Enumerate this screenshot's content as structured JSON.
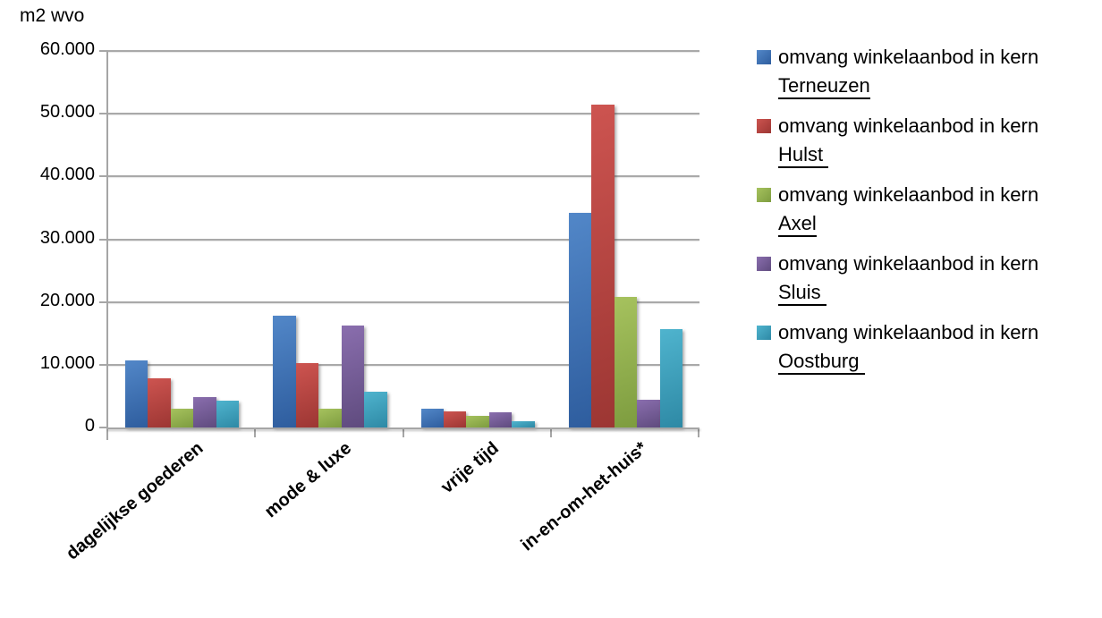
{
  "chart_title": "m2 wvo",
  "chart_data": {
    "type": "bar",
    "title": "m2 wvo",
    "categories": [
      "dagelijkse goederen",
      "mode & luxe",
      "vrije tijd",
      "in-en-om-het-huis*"
    ],
    "series": [
      {
        "name": "omvang winkelaanbod in kern Terneuzen",
        "label": "omvang winkelaanbod in kern",
        "city": "Terneuzen",
        "color": "#4F81BD",
        "color_light": "#5287c8",
        "color_dark": "#2e5d9e",
        "values": [
          10700,
          17800,
          3000,
          34200
        ]
      },
      {
        "name": "omvang winkelaanbod in kern Hulst",
        "label": "omvang winkelaanbod in kern",
        "city": "Hulst ",
        "color": "#C0504D",
        "color_light": "#cd5450",
        "color_dark": "#9c3633",
        "values": [
          7900,
          10300,
          2500,
          51400
        ]
      },
      {
        "name": "omvang winkelaanbod in kern Axel",
        "label": "omvang winkelaanbod in kern",
        "city": "Axel",
        "color": "#9BBB59",
        "color_light": "#a6c25e",
        "color_dark": "#7d9c3f",
        "values": [
          3000,
          3000,
          1900,
          20800
        ]
      },
      {
        "name": "omvang winkelaanbod in kern Sluis",
        "label": "omvang winkelaanbod in kern",
        "city": "Sluis ",
        "color": "#8064A2",
        "color_light": "#8a6eae",
        "color_dark": "#5f4b7e",
        "values": [
          4800,
          16200,
          2400,
          4400
        ]
      },
      {
        "name": "omvang winkelaanbod in kern Oostburg",
        "label": "omvang winkelaanbod in kern",
        "city": "Oostburg ",
        "color": "#4BACC6",
        "color_light": "#4fb4ce",
        "color_dark": "#2e89a5",
        "values": [
          4300,
          5700,
          1000,
          15700
        ]
      }
    ],
    "xlabel": "",
    "ylabel": "m2 wvo",
    "ylim": [
      0,
      60000
    ],
    "ytick_step": 10000,
    "ytick_labels": [
      "0",
      "10.000",
      "20.000",
      "30.000",
      "40.000",
      "50.000",
      "60.000"
    ],
    "grid": true,
    "legend_position": "right",
    "axis_color": "#a6a6a6",
    "gridline_color": "#a9a9a9"
  }
}
